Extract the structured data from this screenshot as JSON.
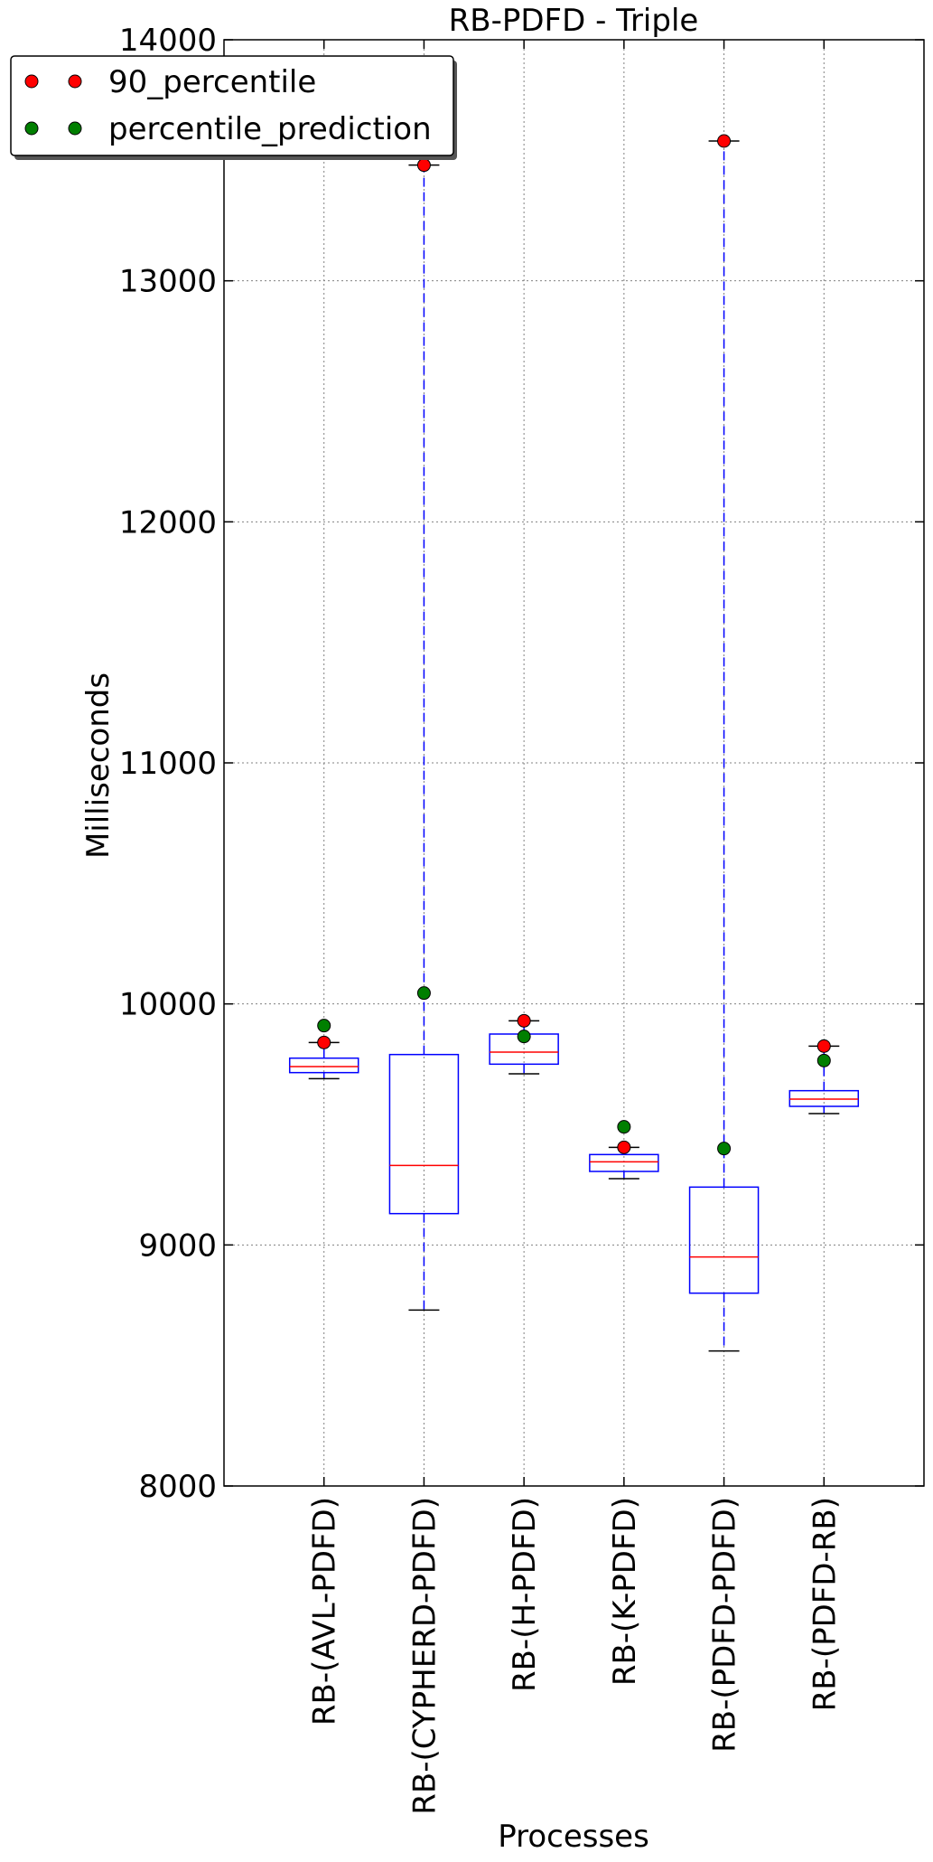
{
  "chart_data": {
    "type": "box",
    "title": "RB-PDFD - Triple",
    "xlabel": "Processes",
    "ylabel": "Milliseconds",
    "ylim": [
      8000,
      14000
    ],
    "yticks": [
      8000,
      9000,
      10000,
      11000,
      12000,
      13000,
      14000
    ],
    "grid": true,
    "legend_position": "top-left",
    "categories": [
      "RB-(AVL-PDFD)",
      "RB-(CYPHERD-PDFD)",
      "RB-(H-PDFD)",
      "RB-(K-PDFD)",
      "RB-(PDFD-PDFD)",
      "RB-(PDFD-RB)"
    ],
    "boxes": [
      {
        "whisker_low": 9690,
        "q1": 9715,
        "median": 9740,
        "q3": 9775,
        "whisker_high": 9840
      },
      {
        "whisker_low": 8730,
        "q1": 9130,
        "median": 9330,
        "q3": 9790,
        "whisker_high": 13480
      },
      {
        "whisker_low": 9710,
        "q1": 9750,
        "median": 9800,
        "q3": 9875,
        "whisker_high": 9930
      },
      {
        "whisker_low": 9275,
        "q1": 9305,
        "median": 9345,
        "q3": 9375,
        "whisker_high": 9405
      },
      {
        "whisker_low": 8560,
        "q1": 8800,
        "median": 8950,
        "q3": 9240,
        "whisker_high": 13580
      },
      {
        "whisker_low": 9545,
        "q1": 9575,
        "median": 9605,
        "q3": 9640,
        "whisker_high": 9825
      }
    ],
    "series": [
      {
        "name": "90_percentile",
        "color": "#ff0000",
        "values": [
          9840,
          13480,
          9930,
          9405,
          13580,
          9825
        ]
      },
      {
        "name": "percentile_prediction",
        "color": "#007f00",
        "values": [
          9910,
          10045,
          9865,
          9490,
          9400,
          9765
        ]
      }
    ],
    "colors": {
      "box": "#0000ff",
      "median": "#ff0000",
      "whisker": "#0000ff",
      "cap": "#000000",
      "grid": "#808080"
    }
  }
}
